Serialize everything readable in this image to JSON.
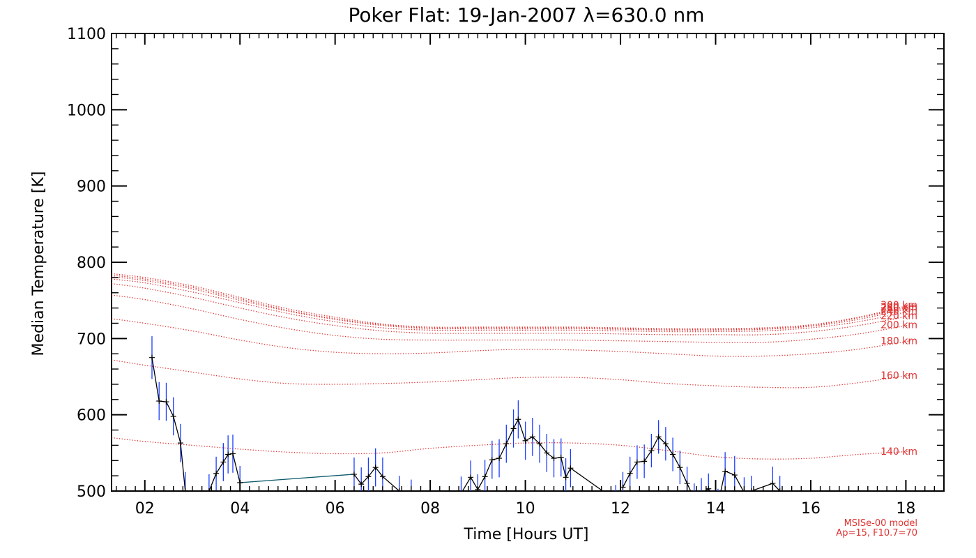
{
  "chart_data": {
    "type": "line",
    "title": "Poker Flat: 19-Jan-2007 λ=630.0 nm",
    "xlabel": "Time [Hours UT]",
    "ylabel": "Median Temperature [K]",
    "xlim": [
      1.3,
      18.8
    ],
    "ylim": [
      500,
      1100
    ],
    "x_ticks": [
      2,
      4,
      6,
      8,
      10,
      12,
      14,
      16,
      18
    ],
    "x_tick_labels": [
      "02",
      "04",
      "06",
      "08",
      "10",
      "12",
      "14",
      "16",
      "18"
    ],
    "y_ticks": [
      500,
      600,
      700,
      800,
      900,
      1000,
      1100
    ],
    "y_tick_labels": [
      "500",
      "600",
      "700",
      "800",
      "900",
      "1000",
      "1100"
    ],
    "model_times": [
      1.3,
      2.0,
      3.0,
      4.0,
      5.0,
      6.0,
      7.0,
      8.0,
      9.0,
      10.0,
      11.0,
      12.0,
      13.0,
      14.0,
      15.0,
      16.0,
      17.0,
      18.1
    ],
    "model_curves": [
      {
        "name": "140 km",
        "label": "140 km",
        "values": [
          570,
          565,
          560,
          555,
          551,
          549,
          550,
          556,
          560,
          563,
          563,
          560,
          553,
          545,
          542,
          543,
          548,
          552
        ]
      },
      {
        "name": "160 km",
        "label": "160 km",
        "values": [
          672,
          665,
          656,
          647,
          641,
          640,
          641,
          643,
          646,
          649,
          649,
          646,
          641,
          638,
          636,
          636,
          642,
          652
        ]
      },
      {
        "name": "180 km",
        "label": "180 km",
        "values": [
          726,
          720,
          710,
          698,
          688,
          682,
          680,
          681,
          684,
          686,
          685,
          683,
          680,
          677,
          677,
          680,
          686,
          697
        ]
      },
      {
        "name": "200 km",
        "label": "200 km",
        "values": [
          757,
          751,
          739,
          725,
          713,
          704,
          699,
          698,
          698,
          698,
          698,
          697,
          696,
          695,
          695,
          699,
          706,
          718
        ]
      },
      {
        "name": "220 km",
        "label": "220 km",
        "values": [
          772,
          766,
          754,
          740,
          727,
          717,
          710,
          707,
          707,
          707,
          707,
          706,
          705,
          705,
          705,
          709,
          717,
          730
        ]
      },
      {
        "name": "240 km",
        "label": "240 km",
        "values": [
          778,
          773,
          761,
          747,
          733,
          722,
          714,
          711,
          711,
          711,
          711,
          710,
          709,
          709,
          710,
          714,
          722,
          736
        ]
      },
      {
        "name": "260 km",
        "label": "260 km",
        "values": [
          781,
          776,
          765,
          750,
          736,
          725,
          717,
          713,
          713,
          713,
          713,
          712,
          711,
          711,
          712,
          716,
          725,
          740
        ]
      },
      {
        "name": "280 km",
        "label": "280 km",
        "values": [
          783,
          778,
          767,
          752,
          737,
          726,
          718,
          714,
          714,
          714,
          714,
          713,
          712,
          712,
          713,
          717,
          727,
          742
        ]
      },
      {
        "name": "300 km",
        "label": "300 km",
        "values": [
          785,
          780,
          769,
          754,
          739,
          728,
          719,
          715,
          715,
          715,
          715,
          714,
          713,
          713,
          714,
          718,
          728,
          744
        ]
      }
    ],
    "series": [
      {
        "name": "Median temperature",
        "x": [
          2.15,
          2.3,
          2.45,
          2.6,
          2.75,
          2.85,
          3.35,
          3.5,
          3.65,
          3.75,
          3.85,
          4.0,
          6.4,
          6.55,
          6.7,
          6.85,
          7.0,
          7.35,
          7.6,
          8.65,
          8.85,
          9.0,
          9.15,
          9.3,
          9.45,
          9.6,
          9.75,
          9.85,
          10.0,
          10.15,
          10.3,
          10.45,
          10.6,
          10.75,
          10.85,
          10.95,
          11.9,
          12.05,
          12.2,
          12.35,
          12.5,
          12.65,
          12.8,
          12.95,
          13.1,
          13.25,
          13.4,
          13.55,
          13.7,
          13.85,
          14.05,
          14.2,
          14.4,
          14.6,
          14.75,
          15.2,
          15.35
        ],
        "y": [
          675,
          618,
          617,
          598,
          563,
          500,
          500,
          523,
          538,
          548,
          549,
          511,
          522,
          509,
          519,
          531,
          519,
          500,
          495,
          497,
          518,
          502,
          519,
          541,
          543,
          562,
          582,
          594,
          566,
          571,
          562,
          550,
          543,
          544,
          518,
          530,
          488,
          505,
          523,
          538,
          539,
          553,
          571,
          562,
          548,
          531,
          510,
          490,
          497,
          503,
          483,
          526,
          521,
          498,
          500,
          510,
          500
        ],
        "err": [
          28,
          25,
          25,
          25,
          25,
          25,
          22,
          22,
          25,
          25,
          25,
          22,
          22,
          22,
          25,
          25,
          25,
          20,
          20,
          22,
          22,
          20,
          22,
          25,
          25,
          25,
          25,
          25,
          25,
          25,
          25,
          25,
          25,
          25,
          25,
          25,
          20,
          20,
          22,
          22,
          22,
          22,
          22,
          22,
          22,
          22,
          22,
          20,
          20,
          20,
          20,
          25,
          25,
          20,
          20,
          22,
          20
        ]
      }
    ],
    "annotations": [
      "MSISe-00 model",
      "Ap=15, F10.7=70"
    ],
    "colors": {
      "data": "#1a3cff",
      "line": "#000000",
      "connector": "#0a5a6a",
      "model": "#e03030"
    }
  }
}
